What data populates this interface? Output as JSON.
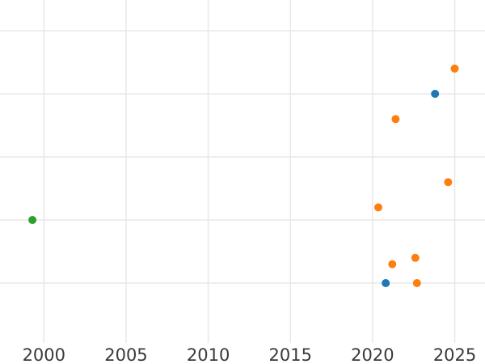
{
  "chart_data": {
    "type": "scatter",
    "title": "",
    "xlabel": "",
    "ylabel": "",
    "grid": true,
    "legend": "none",
    "x_ticks": [
      2000,
      2005,
      2010,
      2015,
      2020,
      2025
    ],
    "y_gridline_values": [
      1,
      2,
      3,
      4,
      5
    ],
    "x_range_visible": [
      1997.3,
      2026.8
    ],
    "y_range_visible": [
      0.05,
      5.5
    ],
    "marker_diameter_px": 10,
    "colors": {
      "background": "#ffffff",
      "grid": "#e8e8e8",
      "tick_label": "#3a3a3a",
      "green": "#2ca02c",
      "blue": "#1f77b4",
      "orange": "#ff7f0e"
    },
    "series": [
      {
        "name": "green-series",
        "color": "#2ca02c",
        "points": [
          {
            "x": 1999.3,
            "y": 2.0
          }
        ]
      },
      {
        "name": "blue-series",
        "color": "#1f77b4",
        "points": [
          {
            "x": 2020.8,
            "y": 1.0
          },
          {
            "x": 2023.8,
            "y": 4.0
          }
        ]
      },
      {
        "name": "orange-series",
        "color": "#ff7f0e",
        "points": [
          {
            "x": 2020.35,
            "y": 2.2
          },
          {
            "x": 2021.2,
            "y": 1.3
          },
          {
            "x": 2021.4,
            "y": 3.6
          },
          {
            "x": 2022.6,
            "y": 1.4
          },
          {
            "x": 2022.7,
            "y": 1.0
          },
          {
            "x": 2024.6,
            "y": 2.6
          },
          {
            "x": 2025.0,
            "y": 4.4
          }
        ]
      }
    ]
  }
}
